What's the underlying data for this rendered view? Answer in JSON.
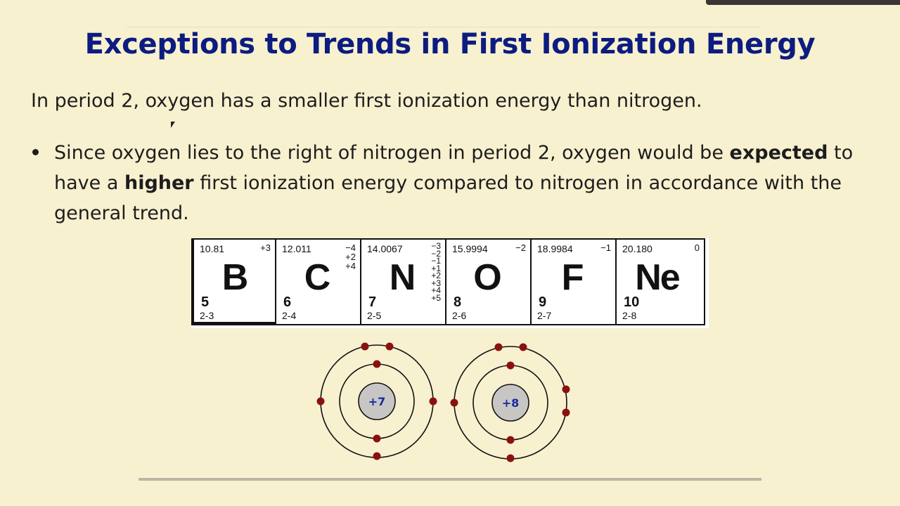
{
  "slide": {
    "title": "Exceptions to Trends in First Ionization Energy",
    "intro": "In period 2, oxygen has a smaller first ionization energy than nitrogen.",
    "bullet": {
      "part1": "Since oxygen lies to the right of nitrogen in period 2, oxygen would be ",
      "bold1": "expected",
      "part2": " to have a ",
      "bold2": "higher",
      "part3": " first ionization energy compared to nitrogen in accordance with the general trend."
    }
  },
  "periodic_table": {
    "cells": [
      {
        "mass": "10.81",
        "oxidation": "+3",
        "symbol": "B",
        "number": "5",
        "config": "2-3"
      },
      {
        "mass": "12.011",
        "oxidation": "−4\n+2\n+4",
        "symbol": "C",
        "number": "6",
        "config": "2-4"
      },
      {
        "mass": "14.0067",
        "oxidation": "−3\n−2\n−1\n+1\n+2\n+3\n+4\n+5",
        "symbol": "N",
        "number": "7",
        "config": "2-5"
      },
      {
        "mass": "15.9994",
        "oxidation": "−2",
        "symbol": "O",
        "number": "8",
        "config": "2-6"
      },
      {
        "mass": "18.9984",
        "oxidation": "−1",
        "symbol": "F",
        "number": "9",
        "config": "2-7"
      },
      {
        "mass": "20.180",
        "oxidation": "0",
        "symbol": "Ne",
        "number": "10",
        "config": "2-8"
      }
    ]
  },
  "bohr_models": [
    {
      "element": "N",
      "nucleus_label": "+7",
      "inner_electrons": 2,
      "outer_electrons": 5
    },
    {
      "element": "O",
      "nucleus_label": "+8",
      "inner_electrons": 2,
      "outer_electrons": 6
    }
  ],
  "colors": {
    "background": "#f8f1d0",
    "title": "#0c1c80",
    "electron": "#8b1010",
    "nucleus": "#c8c6c4",
    "nucleus_text": "#1a2aa0"
  }
}
